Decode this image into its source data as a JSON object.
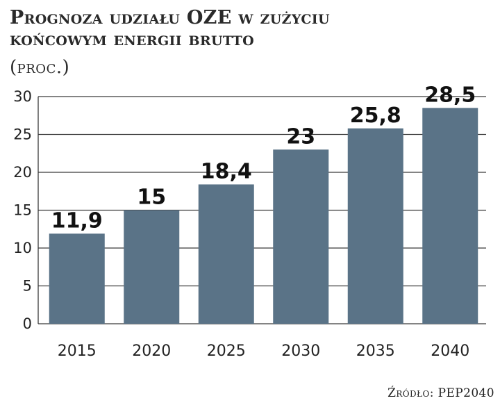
{
  "chart_data": {
    "type": "bar",
    "title_line1": "Prognoza udziału OZE w zużyciu",
    "title_line2": "końcowym energii brutto",
    "subtitle": "(proc.)",
    "source": "Źródło: PEP2040",
    "categories": [
      "2015",
      "2020",
      "2025",
      "2030",
      "2035",
      "2040"
    ],
    "values": [
      11.9,
      15,
      18.4,
      23,
      25.8,
      28.5
    ],
    "data_labels": [
      "11,9",
      "15",
      "18,4",
      "23",
      "25,8",
      "28,5"
    ],
    "yticks": [
      0,
      5,
      10,
      15,
      20,
      25,
      30
    ],
    "ylim": [
      0,
      30
    ],
    "grid": true,
    "bar_color": "#5a7387",
    "grid_color": "#3a3a3a"
  }
}
